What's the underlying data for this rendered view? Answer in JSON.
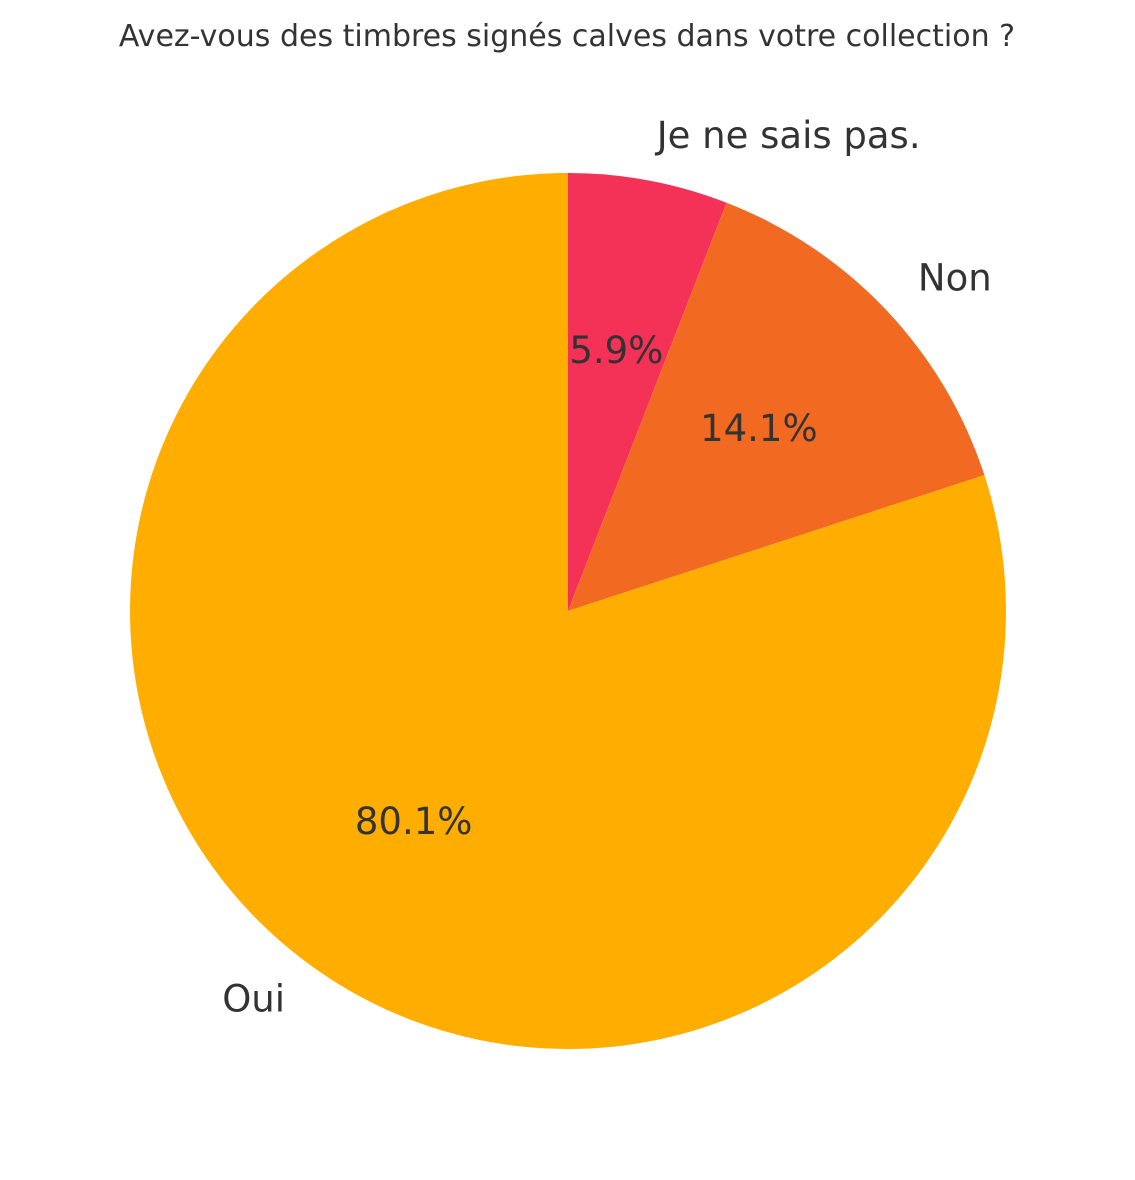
{
  "chart_data": {
    "type": "pie",
    "title": "Avez-vous des timbres signés calves dans votre collection ?",
    "start_angle_deg": 90,
    "direction": "clockwise",
    "slices": [
      {
        "label": "Je ne sais pas.",
        "value": 5.9,
        "pct_label": "5.9%",
        "color": "#F43257"
      },
      {
        "label": "Non",
        "value": 14.1,
        "pct_label": "14.1%",
        "color": "#F26922"
      },
      {
        "label": "Oui",
        "value": 80.1,
        "pct_label": "80.1%",
        "color": "#FFAE00"
      }
    ],
    "label_color": "#333333",
    "background": "#ffffff"
  }
}
